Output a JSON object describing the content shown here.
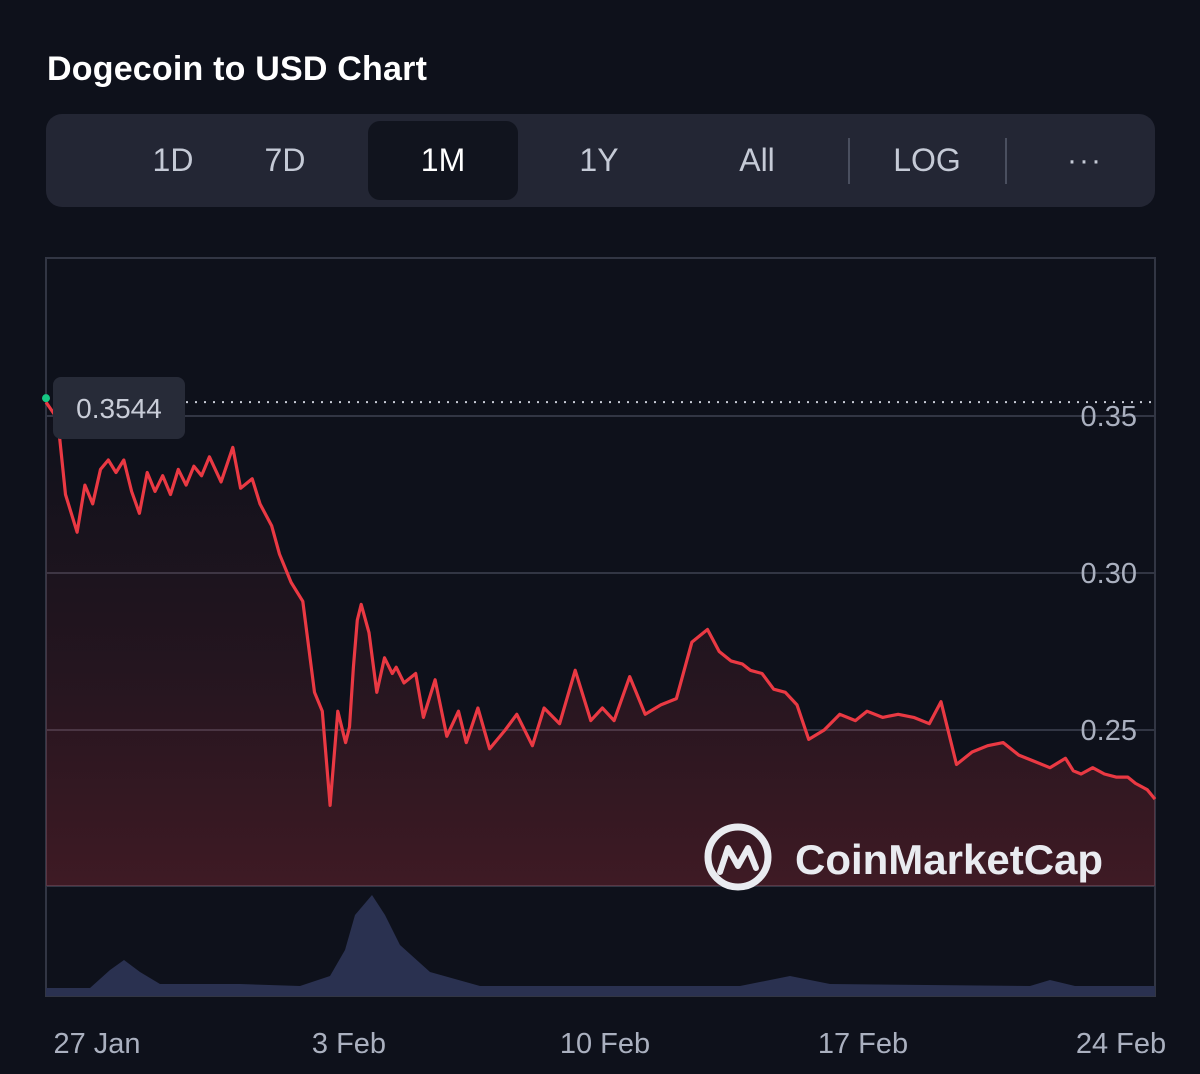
{
  "title": "Dogecoin to USD Chart",
  "toolbar": {
    "tabs": [
      {
        "label": "1D",
        "active": false
      },
      {
        "label": "7D",
        "active": false
      },
      {
        "label": "1M",
        "active": true
      },
      {
        "label": "1Y",
        "active": false
      },
      {
        "label": "All",
        "active": false
      }
    ],
    "log_label": "LOG",
    "more_label": "···"
  },
  "watermark": "CoinMarketCap",
  "current_price_label": "0.3544",
  "colors": {
    "line": "#ea3943",
    "start_marker": "#16c784",
    "volume": "#2a3150",
    "grid": "#323644"
  },
  "chart_data": {
    "type": "line",
    "x_tick_labels": [
      "27 Jan",
      "3 Feb",
      "10 Feb",
      "17 Feb",
      "24 Feb"
    ],
    "y_tick_labels": [
      "0.35",
      "0.30",
      "0.25"
    ],
    "y_ticks": [
      0.35,
      0.3,
      0.25
    ],
    "ylim": [
      0.2,
      0.4
    ],
    "xlim": [
      0,
      28.5
    ],
    "reference_line": 0.3544,
    "grid": true,
    "series": [
      {
        "x": [
          0,
          0.3,
          0.5,
          0.8,
          1.0,
          1.2,
          1.4,
          1.6,
          1.8,
          2.0,
          2.2,
          2.4,
          2.6,
          2.8,
          3.0,
          3.2,
          3.4,
          3.6,
          3.8,
          4.0,
          4.2,
          4.5,
          4.8,
          5.0,
          5.3,
          5.5,
          5.8,
          6.0,
          6.3,
          6.6,
          6.9,
          7.1,
          7.3,
          7.5,
          7.7,
          7.8,
          7.9,
          8.0,
          8.1,
          8.3,
          8.5,
          8.7,
          8.9,
          9.0,
          9.2,
          9.5,
          9.7,
          10.0,
          10.3,
          10.6,
          10.8,
          11.1,
          11.4,
          11.8,
          12.1,
          12.5,
          12.8,
          13.2,
          13.6,
          14.0,
          14.3,
          14.6,
          15.0,
          15.4,
          15.8,
          16.2,
          16.6,
          17.0,
          17.3,
          17.6,
          17.9,
          18.1,
          18.4,
          18.7,
          19.0,
          19.3,
          19.6,
          20.0,
          20.4,
          20.8,
          21.1,
          21.5,
          21.9,
          22.3,
          22.7,
          23.0,
          23.4,
          23.8,
          24.2,
          24.6,
          25.0,
          25.4,
          25.8,
          26.2,
          26.4,
          26.6,
          26.9,
          27.2,
          27.5,
          27.8,
          28.0,
          28.3,
          28.5
        ],
        "y": [
          0.3544,
          0.349,
          0.325,
          0.313,
          0.328,
          0.322,
          0.333,
          0.336,
          0.332,
          0.336,
          0.326,
          0.319,
          0.332,
          0.326,
          0.331,
          0.325,
          0.333,
          0.328,
          0.334,
          0.331,
          0.337,
          0.329,
          0.34,
          0.327,
          0.33,
          0.322,
          0.315,
          0.306,
          0.297,
          0.291,
          0.262,
          0.256,
          0.226,
          0.256,
          0.246,
          0.251,
          0.27,
          0.285,
          0.29,
          0.281,
          0.262,
          0.273,
          0.268,
          0.27,
          0.265,
          0.268,
          0.254,
          0.266,
          0.248,
          0.256,
          0.246,
          0.257,
          0.244,
          0.25,
          0.255,
          0.245,
          0.257,
          0.252,
          0.269,
          0.253,
          0.257,
          0.253,
          0.267,
          0.255,
          0.258,
          0.26,
          0.278,
          0.282,
          0.275,
          0.272,
          0.271,
          0.269,
          0.268,
          0.263,
          0.262,
          0.258,
          0.247,
          0.25,
          0.255,
          0.253,
          0.256,
          0.254,
          0.255,
          0.254,
          0.252,
          0.259,
          0.239,
          0.243,
          0.245,
          0.246,
          0.242,
          0.24,
          0.238,
          0.241,
          0.237,
          0.236,
          0.238,
          0.236,
          0.235,
          0.235,
          0.233,
          0.231,
          0.228
        ]
      }
    ]
  }
}
